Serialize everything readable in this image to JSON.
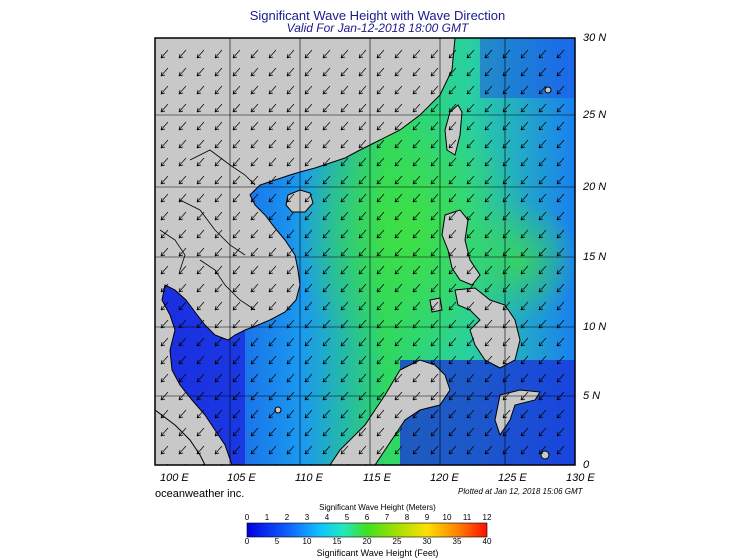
{
  "title": "Significant Wave Height with Wave Direction",
  "subtitle": "Valid For Jan-12-2018 18:00 GMT",
  "lat_labels": [
    "30 N",
    "25 N",
    "20 N",
    "15 N",
    "10 N",
    "5 N",
    "0"
  ],
  "lon_labels": [
    "100 E",
    "105 E",
    "110 E",
    "115 E",
    "120 E",
    "125 E",
    "130 E"
  ],
  "credit": "oceanweather inc.",
  "plotted": "Plotted at Jan 12, 2018 15:06 GMT",
  "colorbar": {
    "title_meters": "Significant Wave Height (Meters)",
    "title_feet": "Significant Wave Height (Feet)",
    "meters_ticks": [
      "0",
      "1",
      "2",
      "3",
      "4",
      "5",
      "6",
      "7",
      "8",
      "9",
      "10",
      "11",
      "12"
    ],
    "feet_ticks": [
      "0",
      "5",
      "10",
      "15",
      "20",
      "25",
      "30",
      "35",
      "40"
    ]
  },
  "colors": {
    "land": "#c8c8c8",
    "title": "#1a1a8c",
    "sea_low": "#1a32e6",
    "sea_mid": "#1aa0f0",
    "sea_high": "#38d838"
  },
  "chart_data": {
    "type": "heatmap",
    "lon_range": [
      100,
      130
    ],
    "lat_range": [
      0,
      30
    ],
    "value_unit": "m",
    "value_range": [
      0,
      12
    ],
    "wave_direction": "predominantly from the northeast toward the southwest"
  }
}
